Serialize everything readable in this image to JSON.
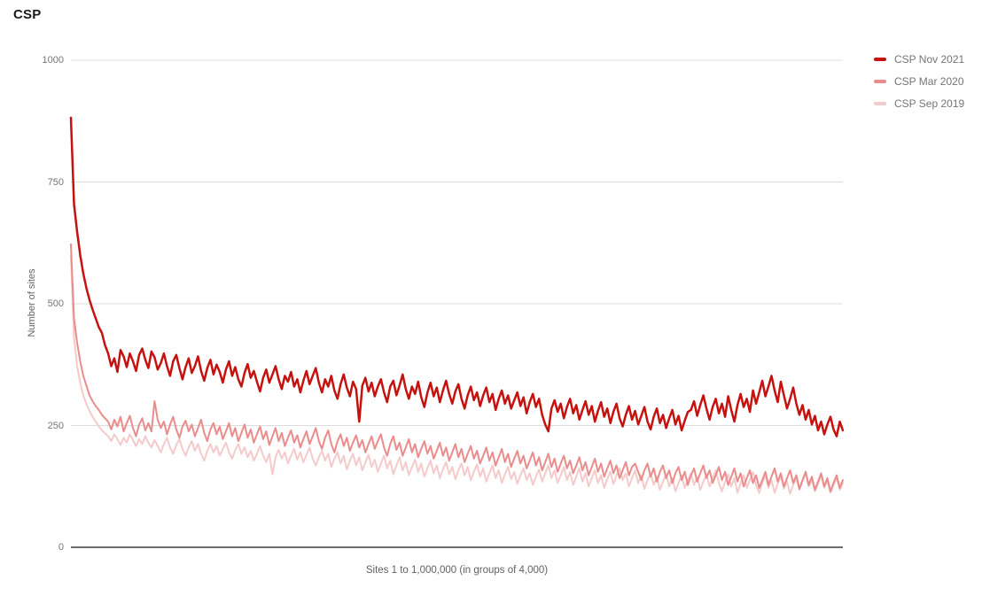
{
  "header": {
    "title": "CSP"
  },
  "colors": {
    "accent_dark_red": "#c5120f",
    "accent_medium_red": "#ea8c8c",
    "accent_light_red": "#f5caca",
    "gridline": "#dcdcdc",
    "baseline": "#3c3c3c",
    "tick_text": "#757575"
  },
  "chart_data": {
    "type": "line",
    "title": "CSP",
    "xlabel": "Sites 1 to 1,000,000 (in groups of 4,000)",
    "ylabel": "Number of sites",
    "ylim": [
      0,
      1000
    ],
    "yticks": [
      0,
      250,
      500,
      750,
      1000
    ],
    "x_points": 250,
    "x_range_note": "sites 1 to 1,000,000 grouped by 4,000 (250 groups)",
    "grid": true,
    "legend_position": "top-right",
    "series": [
      {
        "name": "CSP Nov 2021",
        "color": "#c5120f",
        "stroke_width": 2.5,
        "values": [
          882,
          705,
          648,
          600,
          562,
          532,
          508,
          488,
          470,
          452,
          440,
          415,
          398,
          372,
          388,
          360,
          405,
          392,
          370,
          398,
          382,
          362,
          395,
          408,
          385,
          368,
          402,
          390,
          365,
          378,
          398,
          372,
          352,
          382,
          395,
          368,
          345,
          370,
          388,
          358,
          372,
          392,
          362,
          342,
          368,
          385,
          355,
          375,
          360,
          338,
          365,
          382,
          352,
          370,
          345,
          330,
          358,
          376,
          348,
          362,
          340,
          320,
          348,
          365,
          338,
          355,
          372,
          345,
          325,
          352,
          340,
          360,
          330,
          345,
          318,
          342,
          362,
          335,
          352,
          368,
          338,
          318,
          345,
          330,
          352,
          322,
          305,
          335,
          355,
          328,
          310,
          340,
          325,
          258,
          332,
          348,
          320,
          338,
          310,
          330,
          345,
          318,
          298,
          330,
          342,
          312,
          332,
          355,
          325,
          305,
          330,
          315,
          340,
          308,
          288,
          318,
          338,
          310,
          328,
          298,
          322,
          342,
          315,
          295,
          320,
          335,
          305,
          285,
          312,
          330,
          302,
          318,
          290,
          312,
          328,
          298,
          315,
          282,
          305,
          322,
          295,
          312,
          285,
          302,
          318,
          290,
          308,
          275,
          298,
          315,
          288,
          305,
          272,
          252,
          238,
          285,
          302,
          278,
          295,
          265,
          288,
          305,
          275,
          292,
          262,
          282,
          300,
          272,
          290,
          258,
          280,
          298,
          268,
          285,
          255,
          278,
          295,
          265,
          248,
          272,
          290,
          262,
          280,
          252,
          270,
          288,
          258,
          242,
          268,
          285,
          255,
          272,
          245,
          265,
          282,
          252,
          270,
          240,
          260,
          278,
          282,
          300,
          270,
          292,
          312,
          285,
          262,
          288,
          305,
          275,
          295,
          268,
          310,
          282,
          258,
          292,
          315,
          288,
          305,
          278,
          322,
          295,
          318,
          342,
          310,
          330,
          352,
          322,
          298,
          340,
          312,
          285,
          305,
          328,
          295,
          272,
          292,
          262,
          282,
          252,
          270,
          240,
          258,
          232,
          252,
          268,
          242,
          228,
          258,
          240
        ]
      },
      {
        "name": "CSP Mar 2020",
        "color": "#ea8c8c",
        "stroke_width": 2,
        "values": [
          622,
          470,
          420,
          382,
          352,
          332,
          312,
          300,
          290,
          282,
          272,
          265,
          258,
          242,
          262,
          248,
          268,
          238,
          255,
          270,
          245,
          228,
          252,
          265,
          240,
          255,
          238,
          300,
          262,
          245,
          258,
          232,
          252,
          268,
          242,
          225,
          248,
          260,
          238,
          252,
          228,
          245,
          262,
          235,
          218,
          242,
          255,
          232,
          248,
          222,
          238,
          255,
          228,
          245,
          218,
          235,
          252,
          225,
          242,
          215,
          232,
          248,
          222,
          238,
          210,
          228,
          245,
          218,
          235,
          208,
          225,
          240,
          215,
          230,
          205,
          222,
          238,
          212,
          228,
          245,
          218,
          202,
          225,
          240,
          212,
          195,
          218,
          232,
          208,
          225,
          198,
          215,
          230,
          205,
          220,
          195,
          212,
          228,
          202,
          218,
          232,
          205,
          188,
          212,
          228,
          200,
          215,
          188,
          205,
          222,
          195,
          212,
          185,
          202,
          218,
          192,
          208,
          182,
          198,
          215,
          188,
          205,
          178,
          195,
          212,
          185,
          202,
          175,
          192,
          208,
          182,
          198,
          172,
          188,
          205,
          178,
          195,
          168,
          185,
          202,
          175,
          192,
          165,
          182,
          198,
          172,
          188,
          162,
          178,
          195,
          168,
          185,
          158,
          175,
          192,
          165,
          182,
          155,
          172,
          188,
          162,
          178,
          152,
          168,
          185,
          158,
          175,
          148,
          165,
          182,
          155,
          172,
          145,
          162,
          178,
          152,
          168,
          142,
          158,
          175,
          148,
          165,
          172,
          155,
          138,
          158,
          172,
          145,
          162,
          135,
          155,
          168,
          142,
          158,
          132,
          152,
          165,
          138,
          155,
          128,
          148,
          162,
          135,
          152,
          168,
          142,
          158,
          132,
          148,
          165,
          138,
          155,
          128,
          145,
          162,
          135,
          152,
          125,
          142,
          158,
          132,
          148,
          122,
          138,
          155,
          128,
          145,
          162,
          135,
          152,
          125,
          142,
          158,
          132,
          148,
          120,
          138,
          155,
          128,
          145,
          118,
          135,
          152,
          125,
          142,
          115,
          132,
          148,
          122,
          138
        ]
      },
      {
        "name": "CSP Sep 2019",
        "color": "#f5caca",
        "stroke_width": 2,
        "values": [
          598,
          430,
          372,
          338,
          312,
          294,
          280,
          268,
          258,
          248,
          240,
          234,
          228,
          218,
          232,
          222,
          210,
          225,
          215,
          232,
          220,
          208,
          222,
          212,
          228,
          215,
          205,
          220,
          208,
          195,
          212,
          225,
          205,
          192,
          210,
          222,
          202,
          188,
          205,
          218,
          198,
          212,
          192,
          178,
          198,
          212,
          195,
          208,
          188,
          202,
          215,
          195,
          182,
          200,
          212,
          192,
          205,
          185,
          198,
          178,
          192,
          208,
          188,
          175,
          192,
          150,
          185,
          200,
          182,
          195,
          172,
          188,
          202,
          180,
          195,
          175,
          190,
          205,
          182,
          168,
          185,
          198,
          178,
          192,
          165,
          182,
          195,
          172,
          188,
          160,
          178,
          192,
          168,
          185,
          158,
          175,
          190,
          165,
          180,
          155,
          172,
          188,
          162,
          178,
          150,
          168,
          185,
          158,
          175,
          148,
          165,
          180,
          155,
          172,
          145,
          162,
          178,
          152,
          168,
          142,
          160,
          175,
          150,
          165,
          140,
          158,
          172,
          148,
          165,
          138,
          155,
          170,
          145,
          162,
          135,
          152,
          168,
          142,
          158,
          132,
          150,
          165,
          140,
          155,
          130,
          148,
          162,
          138,
          152,
          128,
          145,
          160,
          135,
          152,
          168,
          142,
          158,
          132,
          148,
          165,
          138,
          155,
          128,
          145,
          162,
          135,
          152,
          125,
          142,
          158,
          132,
          148,
          122,
          140,
          155,
          130,
          148,
          162,
          138,
          152,
          125,
          142,
          158,
          132,
          148,
          120,
          138,
          152,
          128,
          145,
          118,
          135,
          150,
          125,
          142,
          115,
          132,
          148,
          122,
          138,
          152,
          128,
          145,
          118,
          135,
          150,
          125,
          142,
          158,
          132,
          115,
          135,
          150,
          125,
          142,
          112,
          132,
          148,
          122,
          138,
          155,
          128,
          112,
          132,
          148,
          122,
          138,
          112,
          130,
          145,
          120,
          135,
          110,
          128,
          142,
          118,
          135,
          152,
          125,
          140,
          115,
          130,
          148,
          122,
          138,
          112,
          128,
          142,
          118,
          132
        ]
      }
    ]
  },
  "legend": {
    "items": [
      {
        "label": "CSP Nov 2021",
        "swatch_icon": "line-swatch",
        "color": "#c5120f"
      },
      {
        "label": "CSP Mar 2020",
        "swatch_icon": "line-swatch",
        "color": "#ea8c8c"
      },
      {
        "label": "CSP Sep 2019",
        "swatch_icon": "line-swatch",
        "color": "#f5caca"
      }
    ]
  }
}
